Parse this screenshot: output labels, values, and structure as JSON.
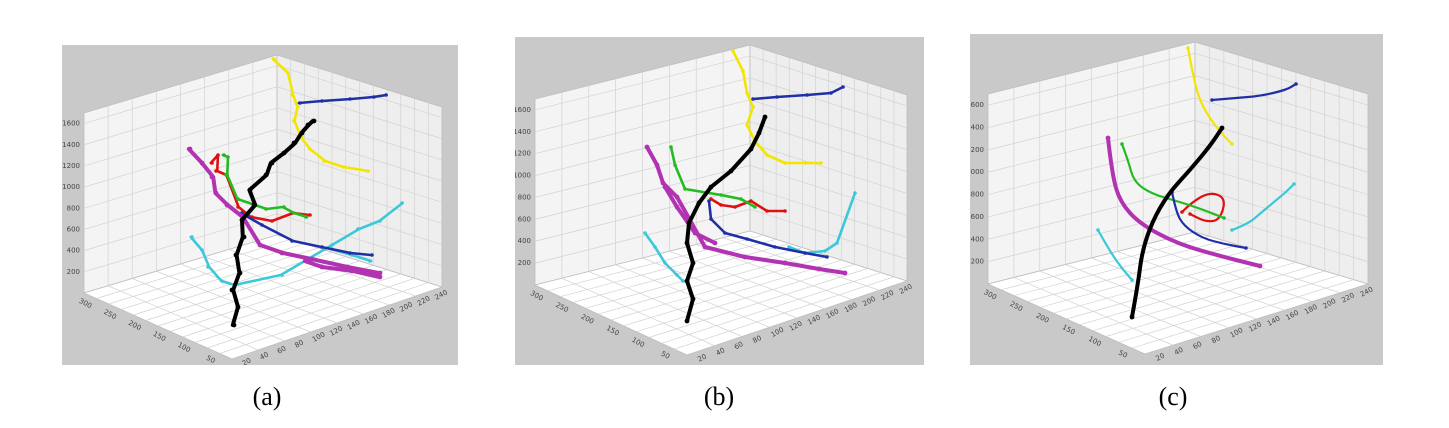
{
  "figure": {
    "captions": [
      "(a)",
      "(b)",
      "(c)"
    ]
  },
  "colors": {
    "background": "#c9c9c9",
    "box_floor": "#ffffff",
    "box_wall_left": "#f4f4f4",
    "box_wall_back": "#eeeeee",
    "grid": "#d2d2d2",
    "black": "#000000",
    "magenta": "#b233b2",
    "yellow": "#f2e600",
    "blue": "#1f2fa6",
    "red": "#e01010",
    "green": "#22bb22",
    "cyan": "#3cc8d8"
  },
  "chart_data": [
    {
      "type": "3d-trajectories",
      "panel": "(a)",
      "z_ticks": [
        "200",
        "400",
        "600",
        "800",
        "1000",
        "1200",
        "1400",
        "1600"
      ],
      "x_ticks": [
        "20",
        "40",
        "60",
        "80",
        "100",
        "120",
        "140",
        "160",
        "180",
        "200",
        "220",
        "240"
      ],
      "y_ticks": [
        "50",
        "100",
        "150",
        "200",
        "250",
        "300"
      ],
      "series": [
        {
          "color": "black",
          "style": "noisy"
        },
        {
          "color": "magenta",
          "style": "noisy"
        },
        {
          "color": "yellow",
          "style": "noisy"
        },
        {
          "color": "blue",
          "style": "noisy"
        },
        {
          "color": "red",
          "style": "noisy"
        },
        {
          "color": "green",
          "style": "noisy"
        },
        {
          "color": "cyan",
          "style": "noisy"
        }
      ]
    },
    {
      "type": "3d-trajectories",
      "panel": "(b)",
      "z_ticks": [
        "200",
        "400",
        "600",
        "800",
        "1000",
        "1200",
        "1400",
        "1600"
      ],
      "x_ticks": [
        "20",
        "40",
        "60",
        "80",
        "100",
        "120",
        "140",
        "160",
        "180",
        "200",
        "220",
        "240"
      ],
      "y_ticks": [
        "50",
        "100",
        "150",
        "200",
        "250",
        "300"
      ],
      "series": [
        {
          "color": "black",
          "style": "smoothed"
        },
        {
          "color": "magenta",
          "style": "smoothed"
        },
        {
          "color": "yellow",
          "style": "smoothed"
        },
        {
          "color": "blue",
          "style": "smoothed"
        },
        {
          "color": "red",
          "style": "smoothed"
        },
        {
          "color": "green",
          "style": "smoothed"
        },
        {
          "color": "cyan",
          "style": "smoothed"
        }
      ]
    },
    {
      "type": "3d-trajectories",
      "panel": "(c)",
      "z_ticks": [
        "200",
        "400",
        "600",
        "800",
        "1000",
        "1200",
        "1400",
        "1600"
      ],
      "x_ticks": [
        "20",
        "40",
        "60",
        "80",
        "100",
        "120",
        "140",
        "160",
        "180",
        "200",
        "220",
        "240"
      ],
      "y_ticks": [
        "50",
        "100",
        "150",
        "200",
        "250",
        "300"
      ],
      "series": [
        {
          "color": "black",
          "style": "fitted"
        },
        {
          "color": "magenta",
          "style": "fitted"
        },
        {
          "color": "yellow",
          "style": "fitted"
        },
        {
          "color": "blue",
          "style": "fitted"
        },
        {
          "color": "red",
          "style": "fitted"
        },
        {
          "color": "green",
          "style": "fitted"
        },
        {
          "color": "cyan",
          "style": "fitted"
        }
      ]
    }
  ]
}
